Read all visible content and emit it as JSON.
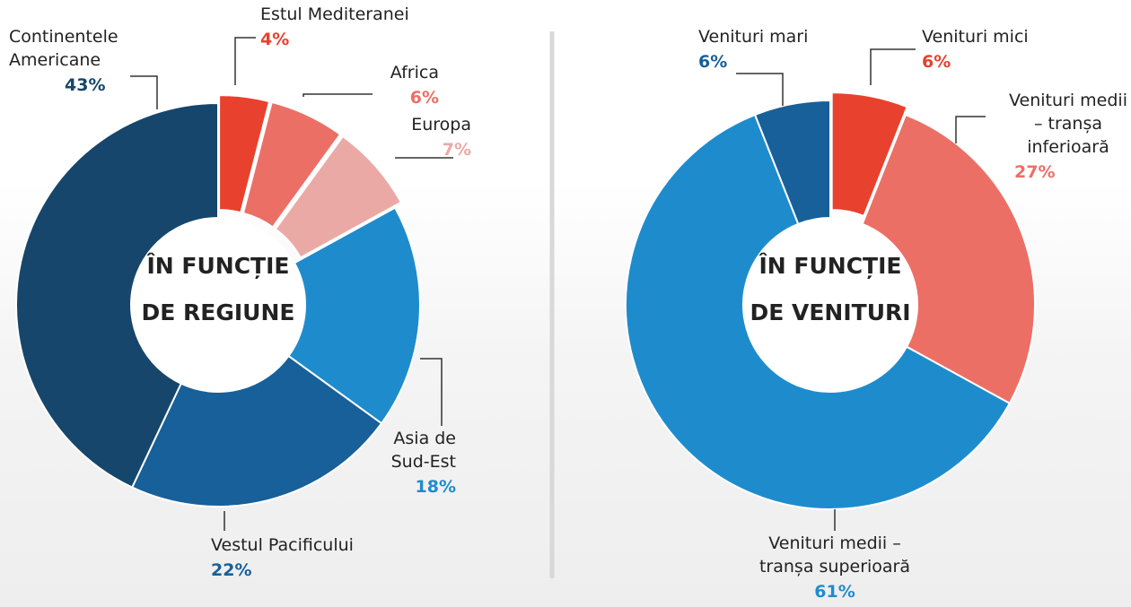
{
  "chart_data": [
    {
      "type": "pie",
      "center_text": [
        "ÎN FUNCȚIE",
        "DE REGIUNE"
      ],
      "categories": [
        [
          "Estul Mediteranei"
        ],
        [
          "Africa"
        ],
        [
          "Europa"
        ],
        [
          "Asia de",
          "Sud-Est"
        ],
        [
          "Vestul Pacificului"
        ],
        [
          "Continentele",
          "Americane"
        ]
      ],
      "values": [
        4,
        6,
        7,
        18,
        22,
        43
      ],
      "value_labels": [
        "4%",
        "6%",
        "7%",
        "18%",
        "22%",
        "43%"
      ],
      "colors": [
        "#e8412e",
        "#ec6f66",
        "#eba9a6",
        "#1e8ccc",
        "#17609a",
        "#16466b"
      ]
    },
    {
      "type": "pie",
      "center_text": [
        "ÎN FUNCȚIE",
        "DE VENITURI"
      ],
      "categories": [
        [
          "Venituri mici"
        ],
        [
          "Venituri medii",
          "– tranșa",
          "inferioară"
        ],
        [
          "Venituri medii –",
          "tranșa superioară"
        ],
        [
          "Venituri mari"
        ]
      ],
      "values": [
        6,
        27,
        61,
        6
      ],
      "value_labels": [
        "6%",
        "27%",
        "61%",
        "6%"
      ],
      "colors": [
        "#e8412e",
        "#ec6f66",
        "#1e8ccc",
        "#17609a"
      ]
    }
  ]
}
